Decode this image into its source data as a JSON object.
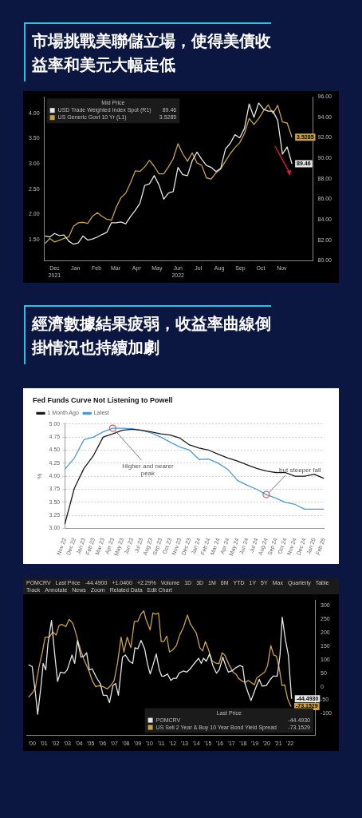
{
  "chart_data": [
    {
      "type": "other",
      "title": "市場挑戰美聯儲立場，使得美債收益率和美元大幅走低"
    },
    {
      "type": "line",
      "legend_title": "Mid Price",
      "legend": "top left",
      "x": [
        "2021-12-01",
        "2021-12-08",
        "2021-12-15",
        "2021-12-22",
        "2021-12-29",
        "2022-01-05",
        "2022-01-12",
        "2022-01-19",
        "2022-01-26",
        "2022-02-02",
        "2022-02-09",
        "2022-02-16",
        "2022-02-23",
        "2022-03-02",
        "2022-03-09",
        "2022-03-16",
        "2022-03-23",
        "2022-03-30",
        "2022-04-06",
        "2022-04-13",
        "2022-04-20",
        "2022-04-27",
        "2022-05-04",
        "2022-05-11",
        "2022-05-18",
        "2022-05-25",
        "2022-06-01",
        "2022-06-08",
        "2022-06-15",
        "2022-06-22",
        "2022-06-29",
        "2022-07-06",
        "2022-07-13",
        "2022-07-20",
        "2022-07-27",
        "2022-08-03",
        "2022-08-10",
        "2022-08-17",
        "2022-08-24",
        "2022-08-31",
        "2022-09-07",
        "2022-09-14",
        "2022-09-21",
        "2022-09-28",
        "2022-10-05",
        "2022-10-12",
        "2022-10-19",
        "2022-10-26",
        "2022-11-02",
        "2022-11-09",
        "2022-11-16",
        "2022-11-23",
        "2022-11-30"
      ],
      "xlim": [
        "2021-11-30",
        "2022-12-31"
      ],
      "xticks": [
        {
          "value": "2021-12-15",
          "label": "Dec\n2021"
        },
        {
          "value": "2022-01-15",
          "label": "Jan"
        },
        {
          "value": "2022-02-15",
          "label": "Feb"
        },
        {
          "value": "2022-03-15",
          "label": "Mar"
        },
        {
          "value": "2022-04-15",
          "label": "Apr"
        },
        {
          "value": "2022-05-15",
          "label": "May"
        },
        {
          "value": "2022-06-15",
          "label": "Jun\n2022"
        },
        {
          "value": "2022-07-15",
          "label": "Jul"
        },
        {
          "value": "2022-08-15",
          "label": "Aug"
        },
        {
          "value": "2022-09-15",
          "label": "Sep"
        },
        {
          "value": "2022-10-15",
          "label": "Oct"
        },
        {
          "value": "2022-11-15",
          "label": "Nov"
        }
      ],
      "ylim": [
        1.08,
        4.33
      ],
      "yticks": [
        {
          "value": 1.5,
          "label": "1.50"
        },
        {
          "value": 2,
          "label": "2.00"
        },
        {
          "value": 2.5,
          "label": "2.50"
        },
        {
          "value": 3,
          "label": "3.00"
        },
        {
          "value": 3.5,
          "label": "3.50"
        },
        {
          "value": 4,
          "label": "4.00"
        }
      ],
      "y2lim": [
        80,
        96
      ],
      "y2ticks": [
        {
          "value": 80,
          "label": "80.00"
        },
        {
          "value": 82,
          "label": "82.00"
        },
        {
          "value": 84,
          "label": "84.00"
        },
        {
          "value": 86,
          "label": "86.00"
        },
        {
          "value": 88,
          "label": "88.00"
        },
        {
          "value": 90,
          "label": "90.00"
        },
        {
          "value": 92,
          "label": "92.00"
        },
        {
          "value": 94,
          "label": "94.00"
        },
        {
          "value": 96,
          "label": "96.00"
        }
      ],
      "series": [
        {
          "name": "USD Trade Weighted Index Spot (R1)",
          "color": "#e6e6e6",
          "axis": "y2",
          "values": [
            82.4,
            82.3,
            82.65,
            82.45,
            82.5,
            81.9,
            81.6,
            81.73,
            82.4,
            82.0,
            82.11,
            82.3,
            82.55,
            82.75,
            83.7,
            83.7,
            83.78,
            83.6,
            84.3,
            84.9,
            85.6,
            87.35,
            87.5,
            88.3,
            87.4,
            86.0,
            86.6,
            86.74,
            89.1,
            88.4,
            88.3,
            89.75,
            90.6,
            89.9,
            89.3,
            89.1,
            88.7,
            89.0,
            90.9,
            91.45,
            92.3,
            92.0,
            92.9,
            95.3,
            94.0,
            95.4,
            94.8,
            94.6,
            94.6,
            93.7,
            90.4,
            91.1,
            89.46
          ],
          "value_labels": [
            null,
            null,
            null,
            null,
            null,
            null,
            null,
            null,
            null,
            null,
            null,
            null,
            null,
            null,
            null,
            null,
            null,
            null,
            null,
            null,
            null,
            null,
            null,
            null,
            null,
            null,
            null,
            null,
            null,
            null,
            null,
            null,
            null,
            null,
            null,
            null,
            null,
            null,
            null,
            null,
            null,
            null,
            null,
            null,
            null,
            null,
            null,
            null,
            null,
            null,
            null,
            null,
            "89.46"
          ]
        },
        {
          "name": "US Generic Govt 10 Yr (L1)",
          "color": "#c9a24a",
          "axis": "y",
          "values": [
            1.42,
            1.52,
            1.45,
            1.48,
            1.52,
            1.55,
            1.76,
            1.83,
            1.84,
            1.82,
            1.96,
            2.03,
            1.96,
            1.9,
            1.88,
            2.14,
            2.33,
            2.42,
            2.62,
            2.86,
            2.85,
            2.94,
            3.07,
            2.95,
            2.8,
            2.8,
            2.94,
            3.1,
            3.4,
            3.2,
            3.05,
            3.22,
            3.02,
            2.97,
            2.72,
            2.7,
            2.82,
            2.9,
            3.05,
            3.2,
            3.32,
            3.42,
            3.6,
            3.9,
            3.78,
            3.9,
            4.05,
            4.17,
            4.0,
            4.16,
            3.83,
            3.81,
            3.5285
          ],
          "value_labels": [
            null,
            null,
            null,
            null,
            null,
            null,
            null,
            null,
            null,
            null,
            null,
            null,
            null,
            null,
            null,
            null,
            null,
            null,
            null,
            null,
            null,
            null,
            null,
            null,
            null,
            null,
            null,
            null,
            null,
            null,
            null,
            null,
            null,
            null,
            null,
            null,
            null,
            null,
            null,
            null,
            null,
            null,
            null,
            null,
            null,
            null,
            null,
            null,
            null,
            null,
            null,
            null,
            "3.5285"
          ]
        }
      ]
    },
    {
      "type": "other",
      "title": "經濟數據結果疲弱，收益率曲線倒掛情況也持續加劇"
    },
    {
      "type": "line",
      "title": "Fed Funds Curve Not Listening to Powell",
      "ylabel": "%",
      "legend": "top left",
      "grid": "y",
      "categories": [
        "Nov 22",
        "Dec 22",
        "Jan 23",
        "Feb 23",
        "Mar 23",
        "Apr 23",
        "May 23",
        "Jun 23",
        "Jul 23",
        "Aug 23",
        "Sep 23",
        "Oct 23",
        "Nov 23",
        "Dec 23",
        "Jan 24",
        "Feb 24",
        "Mar 24",
        "Apr 24",
        "May 24",
        "Jun 24",
        "Jul 24",
        "Aug 24",
        "Sep 24",
        "Oct 24",
        "Nov 24",
        "Dec 24",
        "Jan 25",
        "Feb 25"
      ],
      "ylim": [
        3,
        5
      ],
      "yticks": [
        {
          "value": 3,
          "label": "3.00"
        },
        {
          "value": 3.25,
          "label": "3.25"
        },
        {
          "value": 3.5,
          "label": "3.50"
        },
        {
          "value": 3.75,
          "label": "3.75"
        },
        {
          "value": 4,
          "label": "4.00"
        },
        {
          "value": 4.25,
          "label": "4.25"
        },
        {
          "value": 4.5,
          "label": "4.50"
        },
        {
          "value": 4.75,
          "label": "4.75"
        },
        {
          "value": 5,
          "label": "5.00"
        }
      ],
      "series": [
        {
          "name": "1 Month Ago",
          "color": "#1a1a1a",
          "values": [
            3.08,
            3.77,
            4.15,
            4.4,
            4.75,
            4.81,
            4.88,
            4.9,
            4.88,
            4.85,
            4.81,
            4.79,
            4.73,
            4.6,
            4.54,
            4.5,
            4.42,
            4.35,
            4.29,
            4.22,
            4.15,
            4.1,
            4.07,
            4.07,
            4.0,
            4.0,
            4.04,
            3.96
          ]
        },
        {
          "name": "Latest",
          "color": "#4a9ad4",
          "values": [
            4.13,
            4.35,
            4.7,
            4.75,
            4.85,
            4.92,
            4.92,
            4.91,
            4.88,
            4.83,
            4.75,
            4.65,
            4.56,
            4.5,
            4.32,
            4.33,
            4.25,
            4.13,
            3.92,
            3.83,
            3.75,
            3.65,
            3.58,
            3.5,
            3.46,
            3.37,
            3.37,
            3.37
          ]
        }
      ],
      "annotations": [
        {
          "text": "Higher and nearer peak",
          "x": "Apr 23",
          "y": 4.92
        },
        {
          "text": "... but steeper fall",
          "x": "Aug 24",
          "y": 3.65
        }
      ]
    },
    {
      "type": "line",
      "legend_title": "Last Price",
      "legend": "bottom right",
      "annotations": [
        "POMCRV",
        "Last Price",
        "-44.4900",
        "+1.0400",
        "+2.29%",
        "Volume",
        "1D",
        "3D",
        "1M",
        "6M",
        "YTD",
        "1Y",
        "5Y",
        "Max",
        "Quarterly",
        "Table",
        "Track",
        "Annotate",
        "News",
        "Zoom",
        "Related Data",
        "Edit Chart"
      ],
      "xlim": [
        1999.5,
        2024.2
      ],
      "xticks": [
        {
          "value": 2000,
          "label": "'00"
        },
        {
          "value": 2001,
          "label": "'01"
        },
        {
          "value": 2002,
          "label": "'02"
        },
        {
          "value": 2003,
          "label": "'03"
        },
        {
          "value": 2004,
          "label": "'04"
        },
        {
          "value": 2005,
          "label": "'05"
        },
        {
          "value": 2006,
          "label": "'06"
        },
        {
          "value": 2007,
          "label": "'07"
        },
        {
          "value": 2008,
          "label": "'08"
        },
        {
          "value": 2009,
          "label": "'09"
        },
        {
          "value": 2010,
          "label": "'10"
        },
        {
          "value": 2011,
          "label": "'11"
        },
        {
          "value": 2012,
          "label": "'12"
        },
        {
          "value": 2013,
          "label": "'13"
        },
        {
          "value": 2014,
          "label": "'14"
        },
        {
          "value": 2015,
          "label": "'15"
        },
        {
          "value": 2016,
          "label": "'16"
        },
        {
          "value": 2017,
          "label": "'17"
        },
        {
          "value": 2018,
          "label": "'18"
        },
        {
          "value": 2019,
          "label": "'19"
        },
        {
          "value": 2020,
          "label": "'20"
        },
        {
          "value": 2021,
          "label": "'21"
        },
        {
          "value": 2022,
          "label": "'22"
        }
      ],
      "y2lim": [
        -180,
        320
      ],
      "y2ticks": [
        -100,
        -50,
        0,
        50,
        100,
        150,
        200,
        250,
        300
      ],
      "series": [
        {
          "name": "POMCRV",
          "color": "#e6e6e6",
          "axis": "y2",
          "x": [
            1999.69,
            2000.0,
            2000.28,
            2000.47,
            2000.75,
            2000.94,
            2001.16,
            2001.34,
            2001.65,
            2001.93,
            2002.17,
            2002.41,
            2002.76,
            2002.99,
            2003.4,
            2003.63,
            2003.87,
            2004.17,
            2004.41,
            2004.65,
            2004.88,
            2005.12,
            2005.47,
            2005.82,
            2006.06,
            2006.37,
            2006.6,
            2006.89,
            2007.12,
            2007.36,
            2007.71,
            2007.95,
            2008.3,
            2008.58,
            2008.77,
            2009.01,
            2009.29,
            2009.6,
            2009.83,
            2010.07,
            2010.3,
            2010.59,
            2010.85,
            2011.06,
            2011.25,
            2011.55,
            2011.84,
            2012.07,
            2012.31,
            2012.54,
            2012.9,
            2013.2,
            2013.49,
            2013.84,
            2014.2,
            2014.43,
            2014.62,
            2014.86,
            2015.14,
            2015.42,
            2015.73,
            2015.96,
            2016.27,
            2016.51,
            2016.74,
            2017.02,
            2017.38,
            2017.73,
            2017.97,
            2018.16,
            2018.44,
            2018.68,
            2018.91,
            2019.15,
            2019.38,
            2019.62,
            2019.97,
            2020.33,
            2020.56,
            2020.92,
            2021.15,
            2021.34,
            2021.62,
            2021.86,
            2022.14
          ],
          "values": [
            81,
            74,
            -24,
            -102,
            1,
            86,
            62,
            156,
            245,
            117,
            19,
            54,
            50,
            62,
            117,
            86,
            171,
            109,
            113,
            125,
            62,
            66,
            35,
            11,
            -32,
            -32,
            -59,
            4,
            12,
            -32,
            109,
            117,
            94,
            86,
            144,
            140,
            171,
            140,
            86,
            47,
            78,
            121,
            62,
            39,
            39,
            47,
            23,
            31,
            31,
            50,
            58,
            54,
            66,
            86,
            105,
            86,
            105,
            94,
            121,
            78,
            50,
            62,
            109,
            78,
            54,
            58,
            70,
            78,
            74,
            12,
            -24,
            -51,
            -24,
            4,
            27,
            2,
            4,
            27,
            39,
            39,
            117,
            257,
            171,
            117,
            -44.493
          ],
          "value_labels": [
            null,
            null,
            null,
            null,
            null,
            null,
            null,
            null,
            null,
            null,
            null,
            null,
            null,
            null,
            null,
            null,
            null,
            null,
            null,
            null,
            null,
            null,
            null,
            null,
            null,
            null,
            null,
            null,
            null,
            null,
            null,
            null,
            null,
            null,
            null,
            null,
            null,
            null,
            null,
            null,
            null,
            null,
            null,
            null,
            null,
            null,
            null,
            null,
            null,
            null,
            null,
            null,
            null,
            null,
            null,
            null,
            null,
            null,
            null,
            null,
            null,
            null,
            null,
            null,
            null,
            null,
            null,
            null,
            null,
            null,
            null,
            null,
            null,
            null,
            null,
            null,
            null,
            null,
            null,
            null,
            null,
            null,
            null,
            null,
            "-44.4930"
          ]
        },
        {
          "name": "US Sell 2 Year & Buy 10 Year Bond Yield Spread",
          "color": "#c9a24a",
          "axis": "y2",
          "x": [
            1999.69,
            2000.0,
            2000.28,
            2000.57,
            2000.87,
            2001.11,
            2001.46,
            2001.77,
            2002.05,
            2002.29,
            2002.52,
            2002.88,
            2003.16,
            2003.47,
            2003.7,
            2003.94,
            2004.17,
            2004.41,
            2004.65,
            2004.88,
            2005.12,
            2005.42,
            2005.71,
            2006.06,
            2006.41,
            2006.7,
            2007.0,
            2007.29,
            2007.59,
            2007.83,
            2008.11,
            2008.42,
            2008.72,
            2009.01,
            2009.29,
            2009.53,
            2009.71,
            2010.07,
            2010.3,
            2010.54,
            2010.78,
            2011.01,
            2011.25,
            2011.48,
            2011.72,
            2012.0,
            2012.31,
            2012.59,
            2012.9,
            2013.25,
            2013.49,
            2013.77,
            2014.01,
            2014.31,
            2014.55,
            2014.78,
            2015.02,
            2015.37,
            2015.73,
            2015.96,
            2016.2,
            2016.44,
            2016.79,
            2017.14,
            2017.38,
            2017.61,
            2017.97,
            2018.2,
            2018.44,
            2018.68,
            2018.96,
            2019.15,
            2019.5,
            2019.85,
            2020.09,
            2020.37,
            2020.61,
            2020.84,
            2021.08,
            2021.32,
            2021.55,
            2021.79,
            2022.09
          ],
          "values": [
            -39,
            -24,
            -4,
            70,
            128,
            183,
            183,
            202,
            191,
            226,
            230,
            222,
            249,
            234,
            202,
            163,
            132,
            101,
            78,
            54,
            23,
            0,
            4,
            0,
            -8,
            4,
            23,
            89,
            183,
            128,
            183,
            144,
            241,
            241,
            269,
            280,
            249,
            210,
            272,
            268,
            272,
            167,
            167,
            187,
            128,
            136,
            152,
            191,
            218,
            265,
            233,
            214,
            198,
            144,
            132,
            167,
            140,
            94,
            86,
            86,
            125,
            117,
            82,
            54,
            47,
            31,
            19,
            16,
            23,
            16,
            7,
            31,
            43,
            54,
            78,
            152,
            117,
            113,
            70,
            4,
            7,
            -43,
            -73.1529
          ],
          "value_labels": [
            null,
            null,
            null,
            null,
            null,
            null,
            null,
            null,
            null,
            null,
            null,
            null,
            null,
            null,
            null,
            null,
            null,
            null,
            null,
            null,
            null,
            null,
            null,
            null,
            null,
            null,
            null,
            null,
            null,
            null,
            null,
            null,
            null,
            null,
            null,
            null,
            null,
            null,
            null,
            null,
            null,
            null,
            null,
            null,
            null,
            null,
            null,
            null,
            null,
            null,
            null,
            null,
            null,
            null,
            null,
            null,
            null,
            null,
            null,
            null,
            null,
            null,
            null,
            null,
            null,
            null,
            null,
            null,
            null,
            null,
            null,
            null,
            null,
            null,
            null,
            null,
            null,
            null,
            null,
            null,
            null,
            null,
            "-73.1529"
          ]
        }
      ]
    }
  ]
}
